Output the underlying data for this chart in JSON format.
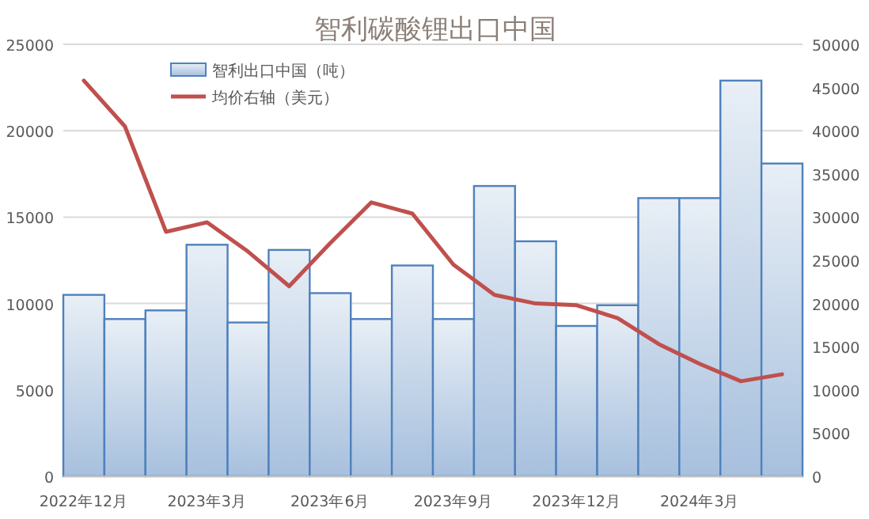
{
  "chart_data": {
    "type": "bar",
    "title": "智利碳酸锂出口中国",
    "categories": [
      "2022年12月",
      null,
      null,
      "2023年3月",
      null,
      null,
      "2023年6月",
      null,
      null,
      "2023年9月",
      null,
      null,
      "2023年12月",
      null,
      null,
      "2024年3月",
      null,
      null
    ],
    "series": [
      {
        "name": "智利出口中国（吨）",
        "color": "#4f81bd",
        "values": [
          10500,
          9100,
          9600,
          13400,
          8900,
          13100,
          10600,
          9100,
          12200,
          9100,
          16800,
          13600,
          8700,
          9900,
          16100,
          16100,
          22900,
          18100
        ]
      },
      {
        "name": "均价右轴（美元）",
        "type": "line",
        "axis": "y2",
        "color": "#c0504d",
        "values": [
          45800,
          40500,
          28300,
          29400,
          26000,
          22000,
          27000,
          31700,
          30400,
          24500,
          21000,
          20000,
          19800,
          18300,
          15300,
          13000,
          11000,
          11800
        ]
      }
    ],
    "ylim": [
      0,
      25000
    ],
    "yticks": [
      0,
      5000,
      10000,
      15000,
      20000,
      25000
    ],
    "y2lim": [
      0,
      50000
    ],
    "y2ticks": [
      0,
      5000,
      10000,
      15000,
      20000,
      25000,
      30000,
      35000,
      40000,
      45000,
      50000
    ],
    "grid": "y",
    "legend": "top left"
  }
}
